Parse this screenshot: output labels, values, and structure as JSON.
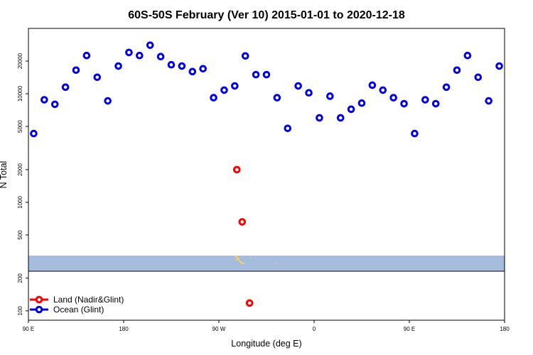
{
  "chart_data": {
    "type": "scatter",
    "title": "60S-50S February (Ver 10)   2015-01-01 to 2020-12-18",
    "xlabel": "Longitude (deg E)",
    "ylabel": "N Total",
    "x_ticks": [
      {
        "value": -90,
        "label": "90 E"
      },
      {
        "value": 0,
        "label": "180"
      },
      {
        "value": 90,
        "label": "90 W"
      },
      {
        "value": 180,
        "label": "0"
      },
      {
        "value": 270,
        "label": "90 E"
      },
      {
        "value": 360,
        "label": "180"
      }
    ],
    "xlim": [
      -90,
      360
    ],
    "ylim": [
      82,
      40000
    ],
    "y_scale": "log",
    "y_ticks": [
      {
        "value": 100,
        "label": "100"
      },
      {
        "value": 200,
        "label": "200"
      },
      {
        "value": 500,
        "label": "500"
      },
      {
        "value": 1000,
        "label": "1000"
      },
      {
        "value": 2000,
        "label": "2000"
      },
      {
        "value": 5000,
        "label": "5000"
      },
      {
        "value": 10000,
        "label": "10000"
      },
      {
        "value": 20000,
        "label": "20000"
      }
    ],
    "legend_position": "bottom-left",
    "series": [
      {
        "name": "Land (Nadir&Glint)",
        "color": "#ff0000",
        "x": [
          107,
          112,
          119
        ],
        "y": [
          2000,
          660,
          118
        ]
      },
      {
        "name": "Ocean (Glint)",
        "color": "#0000ee",
        "x": [
          -85,
          -75,
          -65,
          -55,
          -45,
          -35,
          -25,
          -15,
          -5,
          5,
          15,
          25,
          35,
          45,
          55,
          65,
          75,
          85,
          95,
          105,
          115,
          125,
          135,
          145,
          155,
          165,
          175,
          185,
          195,
          205,
          215,
          225,
          235,
          245,
          255,
          265,
          275,
          285,
          295,
          305,
          315,
          325,
          335,
          345,
          355
        ],
        "y": [
          4300,
          8800,
          8000,
          11500,
          16500,
          22500,
          14200,
          8600,
          18000,
          24000,
          22500,
          28000,
          22000,
          18500,
          18000,
          16000,
          17000,
          9200,
          10800,
          11800,
          22300,
          15000,
          15000,
          9200,
          4800,
          11800,
          10200,
          6000,
          9500,
          6000,
          7200,
          8200,
          12000,
          10800,
          9200,
          8100,
          4300,
          8800,
          8100,
          11500,
          16500,
          22500,
          14200,
          8600,
          18000
        ]
      }
    ]
  }
}
